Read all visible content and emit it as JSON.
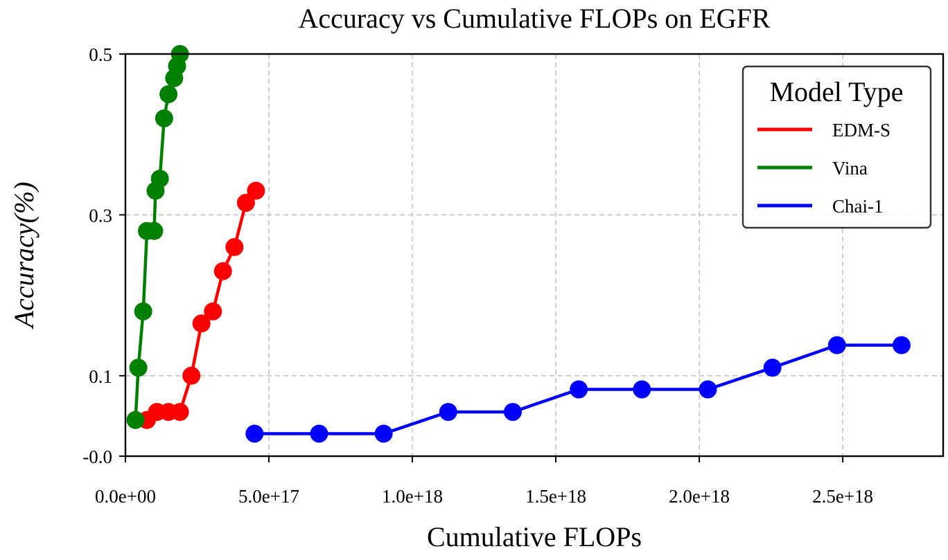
{
  "chart_data": {
    "type": "line",
    "title": "Accuracy vs Cumulative FLOPs on EGFR",
    "xlabel": "Cumulative FLOPs",
    "ylabel": "Accuracy(%)",
    "xlim": [
      0,
      2.85e+18
    ],
    "ylim": [
      -0.0,
      0.5
    ],
    "xticks": [
      0,
      5e+17,
      1e+18,
      1.5e+18,
      2e+18,
      2.5e+18
    ],
    "xtick_labels": [
      "0.0e+00",
      "5.0e+17",
      "1.0e+18",
      "1.5e+18",
      "2.0e+18",
      "2.5e+18"
    ],
    "yticks": [
      0.0,
      0.1,
      0.3,
      0.5
    ],
    "ytick_labels": [
      "-0.0",
      "0.1",
      "0.3",
      "0.5"
    ],
    "grid": true,
    "legend_title": "Model Type",
    "legend_position": "top-right",
    "series": [
      {
        "name": "EDM-S",
        "color": "#ff0000",
        "x": [
          7.5e+16,
          1.1e+17,
          1.5e+17,
          1.9e+17,
          2.3e+17,
          2.65e+17,
          3.05e+17,
          3.4e+17,
          3.8e+17,
          4.2e+17,
          4.55e+17
        ],
        "y": [
          0.045,
          0.055,
          0.055,
          0.055,
          0.1,
          0.165,
          0.18,
          0.23,
          0.26,
          0.315,
          0.33
        ]
      },
      {
        "name": "Vina",
        "color": "#008000",
        "x": [
          3.5e+16,
          4.5e+16,
          6.2e+16,
          7.5e+16,
          1e+17,
          1.05e+17,
          1.2e+17,
          1.35e+17,
          1.5e+17,
          1.7e+17,
          1.8e+17,
          1.9e+17
        ],
        "y": [
          0.045,
          0.11,
          0.18,
          0.28,
          0.28,
          0.33,
          0.345,
          0.42,
          0.45,
          0.47,
          0.485,
          0.5
        ]
      },
      {
        "name": "Chai-1",
        "color": "#0000ff",
        "x": [
          4.5e+17,
          6.75e+17,
          9e+17,
          1.125e+18,
          1.35e+18,
          1.58e+18,
          1.8e+18,
          2.03e+18,
          2.255e+18,
          2.48e+18,
          2.705e+18
        ],
        "y": [
          0.028,
          0.028,
          0.028,
          0.055,
          0.055,
          0.083,
          0.083,
          0.083,
          0.11,
          0.138,
          0.138
        ]
      }
    ]
  }
}
